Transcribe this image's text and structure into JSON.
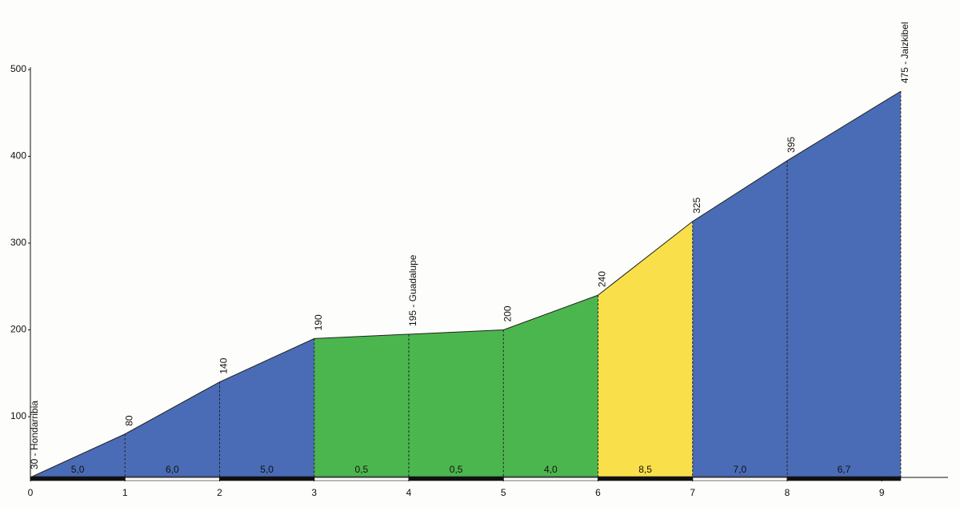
{
  "chart_data": {
    "type": "area",
    "x": [
      0,
      1,
      2,
      3,
      4,
      5,
      6,
      7,
      8,
      9.2
    ],
    "values": [
      30,
      80,
      140,
      190,
      195,
      200,
      240,
      325,
      395,
      475
    ],
    "value_labels": [
      "30 - Hondarribia",
      "80",
      "140",
      "190",
      "195 - Guadalupe",
      "200",
      "240",
      "325",
      "395",
      "475 - Jaizkibel"
    ],
    "segment_labels": [
      "5,0",
      "6,0",
      "5,0",
      "0,5",
      "0,5",
      "4,0",
      "8,5",
      "7,0",
      "6,7"
    ],
    "segment_colors": [
      "#4a6cb6",
      "#4a6cb6",
      "#4a6cb6",
      "#4cb64e",
      "#4cb64e",
      "#4cb64e",
      "#f9e04b",
      "#4a6cb6",
      "#4a6cb6"
    ],
    "xlim": [
      0,
      9.7
    ],
    "ylim": [
      30,
      500
    ],
    "xticks": [
      0,
      1,
      2,
      3,
      4,
      5,
      6,
      7,
      8,
      9
    ],
    "yticks": [
      100,
      200,
      300,
      400,
      500
    ]
  }
}
